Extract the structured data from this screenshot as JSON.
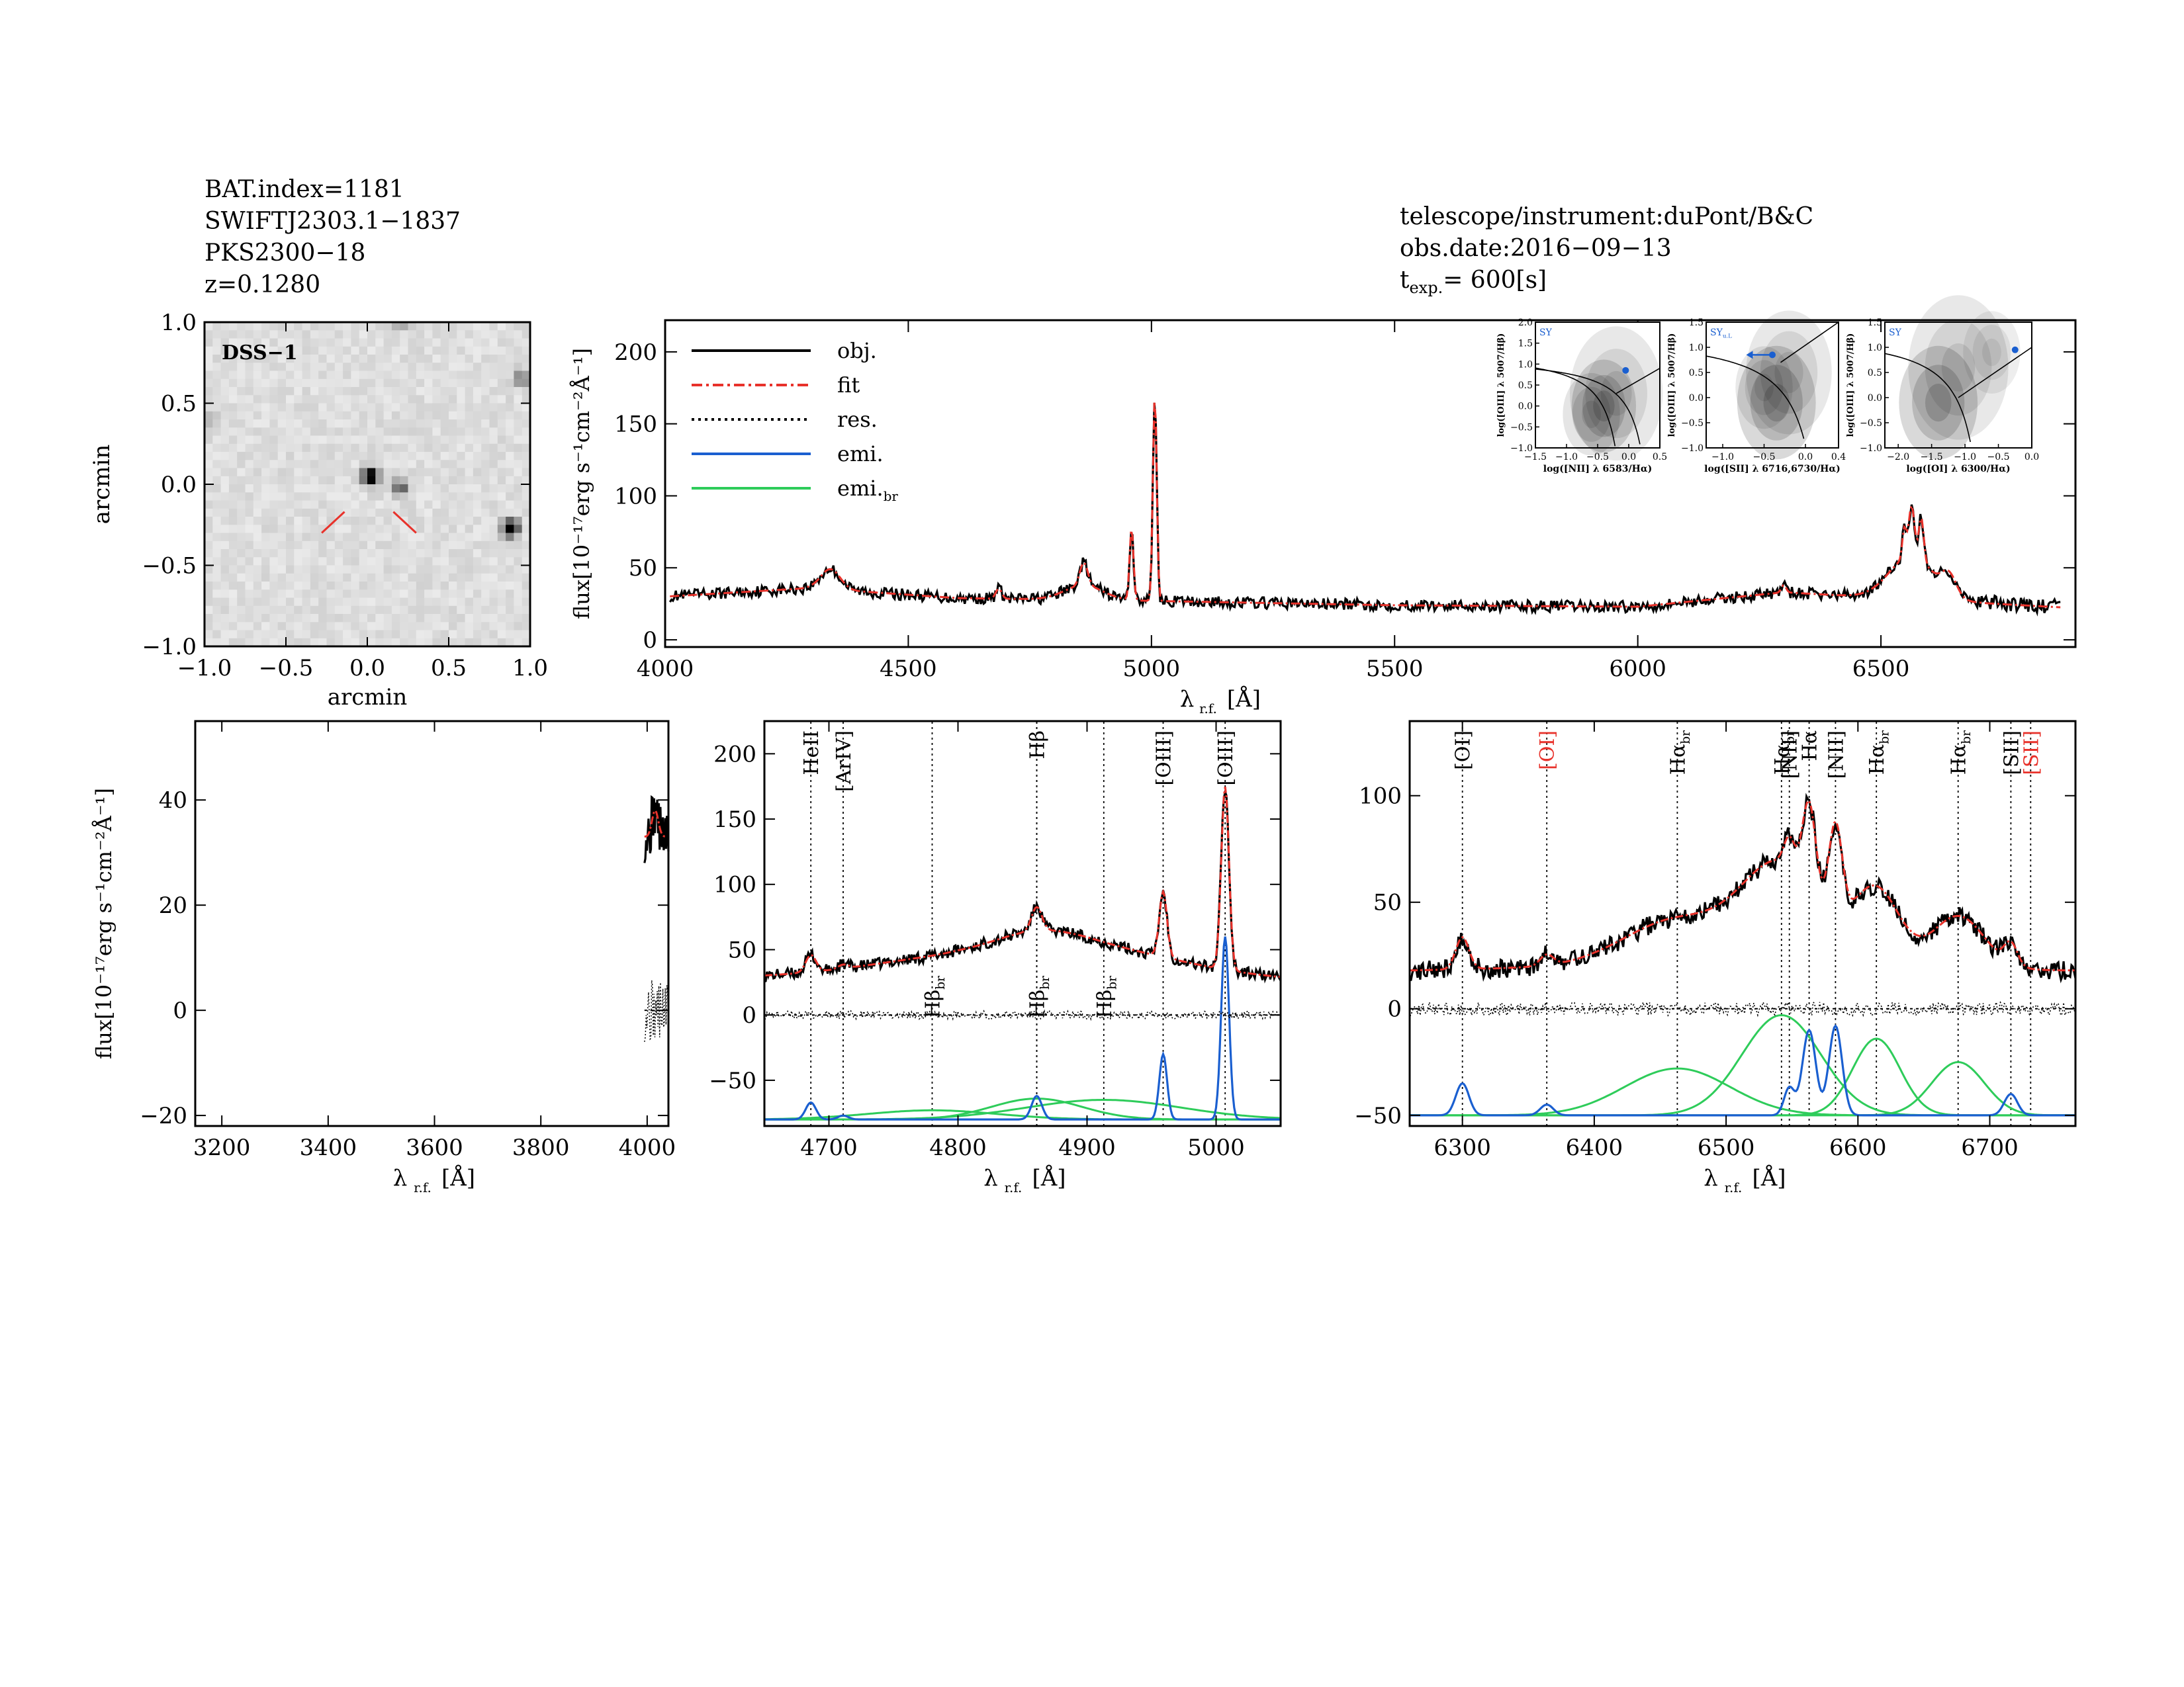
{
  "header_left": {
    "bat_index": "BAT.index=1181",
    "swift_name": "SWIFTJ2303.1−1837",
    "counterpart": "PKS2300−18",
    "redshift": "z=0.1280"
  },
  "header_right": {
    "telescope": "telescope/instrument:duPont/B&C",
    "obs_date": "obs.date:2016−09−13",
    "texp_label": "t",
    "texp_sub": "exp.",
    "texp_value": "=  600[s]"
  },
  "colors": {
    "obj": "#000000",
    "fit": "#e8322b",
    "res": "#000000",
    "emi": "#1a5fd0",
    "emi_br": "#2ecc5a"
  },
  "chart_data": [
    {
      "id": "dss-image",
      "type": "heatmap",
      "label": "DSS−1",
      "xlabel": "arcmin",
      "ylabel": "arcmin",
      "xlim": [
        -1.0,
        1.0
      ],
      "ylim": [
        -1.0,
        1.0
      ],
      "xticks": [
        "−1.0",
        "−0.5",
        "0.0",
        "0.5",
        "1.0"
      ],
      "yticks": [
        "1.0",
        "0.5",
        "0.0",
        "−0.5",
        "−1.0"
      ],
      "sources": [
        {
          "x": 0.02,
          "y": 0.05,
          "mag": 1.0
        },
        {
          "x": 0.88,
          "y": -0.27,
          "mag": 1.0
        },
        {
          "x": 0.2,
          "y": -0.02,
          "mag": 0.5
        },
        {
          "x": 0.95,
          "y": 0.65,
          "mag": 0.4
        },
        {
          "x": 0.2,
          "y": 1.0,
          "mag": 0.3
        },
        {
          "x": -0.97,
          "y": 0.4,
          "mag": 0.2
        }
      ],
      "marker_color": "#e8322b"
    },
    {
      "id": "full-spectrum",
      "type": "line",
      "xlabel": "λ r.f. [Å]",
      "ylabel": "flux[10⁻¹⁷erg s⁻¹cm⁻²Å⁻¹]",
      "xlim": [
        4000,
        6900
      ],
      "ylim": [
        -5,
        222
      ],
      "xticks": [
        4000,
        4500,
        5000,
        5500,
        6000,
        6500
      ],
      "yticks": [
        0,
        50,
        100,
        150,
        200
      ],
      "legend": [
        {
          "name": "obj.",
          "style": "solid",
          "color": "#000000"
        },
        {
          "name": "fit",
          "style": "dashdot",
          "color": "#e8322b"
        },
        {
          "name": "res.",
          "style": "dotted",
          "color": "#000000"
        },
        {
          "name": "emi.",
          "style": "solid",
          "color": "#1a5fd0"
        },
        {
          "name": "emi.",
          "sub": "br",
          "style": "solid",
          "color": "#2ecc5a"
        }
      ],
      "continuum": [
        [
          4000,
          30
        ],
        [
          4300,
          36
        ],
        [
          4600,
          29
        ],
        [
          5000,
          27
        ],
        [
          5500,
          24
        ],
        [
          6000,
          23
        ],
        [
          6300,
          33
        ],
        [
          6900,
          22
        ]
      ],
      "lines": [
        {
          "x": 4340,
          "amp": 14,
          "sigma": 20
        },
        {
          "x": 4686,
          "amp": 7,
          "sigma": 6
        },
        {
          "x": 4861,
          "amp": 16,
          "sigma": 8
        },
        {
          "x": 4861,
          "amp": 10,
          "sigma": 40
        },
        {
          "x": 4959,
          "amp": 50,
          "sigma": 4
        },
        {
          "x": 5007,
          "amp": 143,
          "sigma": 4
        },
        {
          "x": 6563,
          "amp": 30,
          "sigma": 45
        },
        {
          "x": 6548,
          "amp": 20,
          "sigma": 4
        },
        {
          "x": 6563,
          "amp": 35,
          "sigma": 6
        },
        {
          "x": 6583,
          "amp": 30,
          "sigma": 5
        },
        {
          "x": 6640,
          "amp": 14,
          "sigma": 15
        },
        {
          "x": 6300,
          "amp": 5,
          "sigma": 5
        }
      ],
      "insets": [
        {
          "tag": "SY",
          "tag_sub": "",
          "xlabel": "log([NII] λ 6583/Hα)",
          "ylabel": "log([OIII] λ 5007/Hβ)",
          "xlim": [
            -1.5,
            0.5
          ],
          "ylim": [
            -1.0,
            2.0
          ],
          "xticks": [
            "−1.5",
            "−1.0",
            "−0.5",
            "0.0",
            "0.5"
          ],
          "yticks": [
            "2.0",
            "1.5",
            "1.0",
            "0.5",
            "0.0",
            "−0.5",
            "−1.0"
          ],
          "point": {
            "x": -0.05,
            "y": 0.85
          }
        },
        {
          "tag": "SY",
          "tag_sub": "u.L",
          "xlabel": "log([SII] λ 6716,6730/Hα)",
          "ylabel": "log([OIII] λ 5007/Hβ)",
          "xlim": [
            -1.2,
            0.4
          ],
          "ylim": [
            -1.0,
            1.5
          ],
          "xticks": [
            "−1.0",
            "−0.5",
            "0.0",
            "0.4"
          ],
          "yticks": [
            "1.5",
            "1.0",
            "0.5",
            "0.0",
            "−0.5",
            "−1.0"
          ],
          "point": {
            "x": -0.4,
            "y": 0.85
          }
        },
        {
          "tag": "SY",
          "tag_sub": "",
          "xlabel": "log([OI] λ 6300/Hα)",
          "ylabel": "log([OIII] λ 5007/Hβ)",
          "xlim": [
            -2.2,
            0.0
          ],
          "ylim": [
            -1.0,
            1.5
          ],
          "xticks": [
            "−2.0",
            "−1.5",
            "−1.0",
            "−0.5",
            "0.0"
          ],
          "yticks": [
            "1.5",
            "1.0",
            "0.5",
            "0.0",
            "−0.5",
            "−1.0"
          ],
          "point": {
            "x": -0.25,
            "y": 0.95
          }
        }
      ]
    },
    {
      "id": "zoom-oii",
      "type": "line",
      "xlabel": "λ r.f. [Å]",
      "ylabel": "flux[10⁻¹⁷erg s⁻¹cm⁻²Å⁻¹]",
      "xlim": [
        3150,
        4040
      ],
      "ylim": [
        -22,
        55
      ],
      "xticks": [
        3200,
        3400,
        3600,
        3800,
        4000
      ],
      "yticks": [
        -20,
        0,
        20,
        40
      ]
    },
    {
      "id": "zoom-hbeta",
      "type": "line",
      "xlabel": "λ r.f. [Å]",
      "xlim": [
        4650,
        5050
      ],
      "ylim": [
        -85,
        225
      ],
      "xticks": [
        4700,
        4800,
        4900,
        5000
      ],
      "yticks": [
        -50,
        0,
        50,
        100,
        150,
        200
      ],
      "line_markers": [
        {
          "x": 4686,
          "label": "HeII",
          "sub": "",
          "color": "#000000",
          "top": true
        },
        {
          "x": 4711,
          "label": "[ArIV]",
          "sub": "",
          "color": "#000000",
          "top": true
        },
        {
          "x": 4780,
          "label": "Hβ",
          "sub": "br",
          "color": "#000000",
          "top": false
        },
        {
          "x": 4861,
          "label": "Hβ",
          "sub": "",
          "color": "#000000",
          "top": true
        },
        {
          "x": 4861,
          "label": "Hβ",
          "sub": "br",
          "color": "#000000",
          "top": false
        },
        {
          "x": 4913,
          "label": "Hβ",
          "sub": "br",
          "color": "#000000",
          "top": false
        },
        {
          "x": 4959,
          "label": "[OIII]",
          "sub": "",
          "color": "#000000",
          "top": true
        },
        {
          "x": 5007,
          "label": "[OIII]",
          "sub": "",
          "color": "#000000",
          "top": true
        }
      ],
      "emi_offset": -80,
      "narrow": [
        [
          4686,
          13,
          4
        ],
        [
          4711,
          3,
          4
        ],
        [
          4861,
          18,
          4
        ],
        [
          4959,
          50,
          3
        ],
        [
          5007,
          140,
          3
        ]
      ],
      "broad": [
        [
          4780,
          7,
          50
        ],
        [
          4861,
          16,
          35
        ],
        [
          4913,
          15,
          60
        ]
      ],
      "cont": [
        [
          4650,
          30
        ],
        [
          4800,
          37
        ],
        [
          4900,
          36
        ],
        [
          5050,
          28
        ]
      ]
    },
    {
      "id": "zoom-halpha",
      "type": "line",
      "xlabel": "λ r.f. [Å]",
      "xlim": [
        6260,
        6765
      ],
      "ylim": [
        -55,
        135
      ],
      "xticks": [
        6300,
        6400,
        6500,
        6600,
        6700
      ],
      "yticks": [
        -50,
        0,
        50,
        100
      ],
      "line_markers": [
        {
          "x": 6300,
          "label": "[OI]",
          "sub": "",
          "color": "#000000",
          "top": true
        },
        {
          "x": 6364,
          "label": "[OI]",
          "sub": "",
          "color": "#e8322b",
          "top": true
        },
        {
          "x": 6463,
          "label": "Hα",
          "sub": "br",
          "color": "#000000",
          "top": true
        },
        {
          "x": 6542,
          "label": "Hα",
          "sub": "br",
          "color": "#000000",
          "top": true
        },
        {
          "x": 6548,
          "label": "[NII]",
          "sub": "",
          "color": "#000000",
          "top": true
        },
        {
          "x": 6563,
          "label": "Hα",
          "sub": "",
          "color": "#000000",
          "top": true
        },
        {
          "x": 6583,
          "label": "[NII]",
          "sub": "",
          "color": "#000000",
          "top": true
        },
        {
          "x": 6614,
          "label": "Hα",
          "sub": "br",
          "color": "#000000",
          "top": true
        },
        {
          "x": 6676,
          "label": "Hα",
          "sub": "br",
          "color": "#000000",
          "top": true
        },
        {
          "x": 6716,
          "label": "[SII]",
          "sub": "",
          "color": "#000000",
          "top": true
        },
        {
          "x": 6731,
          "label": "[SII]",
          "sub": "",
          "color": "#e8322b",
          "top": true
        }
      ],
      "emi_offset": -50,
      "narrow": [
        [
          6300,
          15,
          5
        ],
        [
          6364,
          5,
          5
        ],
        [
          6548,
          13,
          4
        ],
        [
          6563,
          40,
          5
        ],
        [
          6583,
          42,
          5
        ],
        [
          6716,
          10,
          5
        ]
      ],
      "broad": [
        [
          6463,
          22,
          40
        ],
        [
          6542,
          47,
          30
        ],
        [
          6614,
          36,
          18
        ],
        [
          6676,
          25,
          20
        ]
      ],
      "cont": [
        [
          6260,
          18
        ],
        [
          6400,
          20
        ],
        [
          6765,
          18
        ]
      ]
    }
  ]
}
